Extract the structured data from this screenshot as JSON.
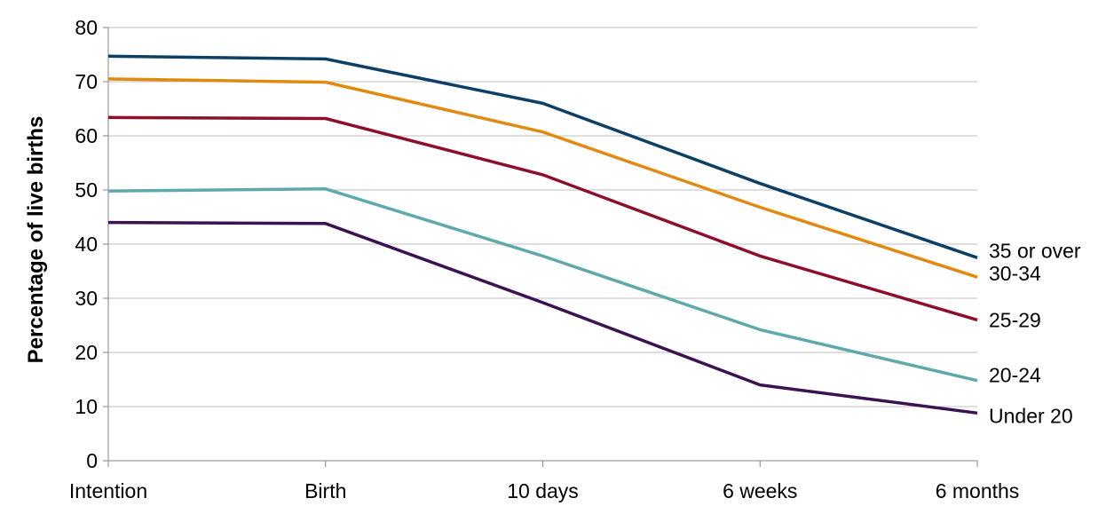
{
  "chart_data": {
    "type": "line",
    "title": "",
    "xlabel": "",
    "ylabel": "Percentage of live births",
    "categories": [
      "Intention",
      "Birth",
      "10 days",
      "6 weeks",
      "6 months"
    ],
    "ylim": [
      0,
      80
    ],
    "yticks": [
      0,
      10,
      20,
      30,
      40,
      50,
      60,
      70,
      80
    ],
    "grid": true,
    "legend": "line-end labels on right",
    "series": [
      {
        "name": "35 or over",
        "color": "#0e3f65",
        "values": [
          74.7,
          74.2,
          66.0,
          51.2,
          37.5
        ]
      },
      {
        "name": "30-34",
        "color": "#e08a12",
        "values": [
          70.5,
          69.9,
          60.7,
          46.8,
          33.9
        ]
      },
      {
        "name": "25-29",
        "color": "#8c0f2c",
        "values": [
          63.4,
          63.2,
          52.8,
          37.8,
          26.0
        ]
      },
      {
        "name": "20-24",
        "color": "#5fa9ab",
        "values": [
          49.8,
          50.2,
          37.8,
          24.2,
          14.8
        ]
      },
      {
        "name": "Under 20",
        "color": "#3a1350",
        "values": [
          44.0,
          43.8,
          29.2,
          14.0,
          8.8
        ]
      }
    ]
  }
}
